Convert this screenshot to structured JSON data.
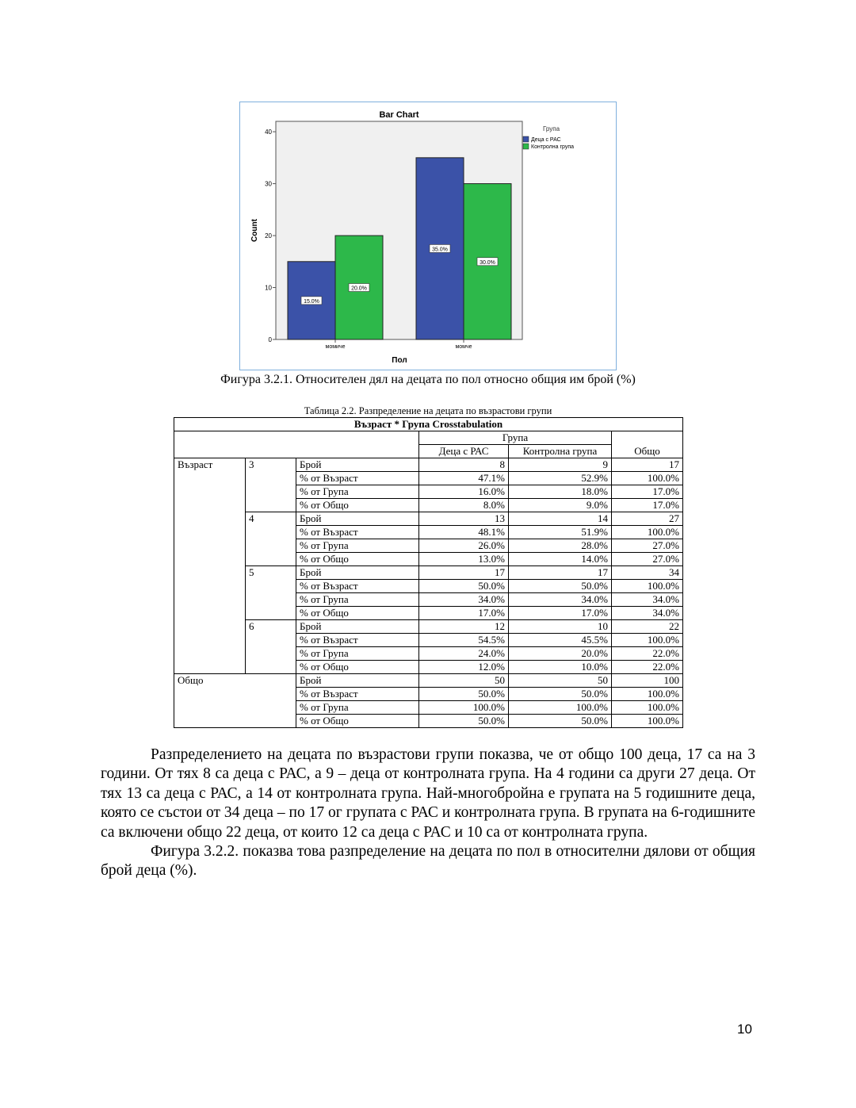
{
  "chart_data": {
    "type": "bar",
    "title": "Bar Chart",
    "xlabel": "Пол",
    "ylabel": "Count",
    "categories": [
      "момиче",
      "момче"
    ],
    "ylim": [
      0,
      42
    ],
    "yticks": [
      0,
      10,
      20,
      30,
      40
    ],
    "legend_title": "Група",
    "legend_position": "right",
    "series": [
      {
        "name": "Деца с РАС",
        "color": "#3b52a8",
        "values": [
          15,
          35
        ],
        "labels": [
          "15.0%",
          "35.0%"
        ]
      },
      {
        "name": "Контролна група",
        "color": "#2db84a",
        "values": [
          20,
          30
        ],
        "labels": [
          "20.0%",
          "30.0%"
        ]
      }
    ]
  },
  "figure_caption": "Фигура 3.2.1. Относителен дял на децата по пол относно общия им брой (%)",
  "table": {
    "caption": "Таблица 2.2. Разпределение на децата по възрастови групи",
    "title": "Възраст * Група Crosstabulation",
    "group_header": "Група",
    "col_headers": [
      "Деца с РАС",
      "Контролна група",
      "Общо"
    ],
    "row_var": "Възраст",
    "total_label": "Общо",
    "stats": [
      "Брой",
      "% от Възраст",
      "% от Група",
      "% от Общо"
    ],
    "groups": [
      {
        "age": "3",
        "rows": [
          [
            "8",
            "9",
            "17"
          ],
          [
            "47.1%",
            "52.9%",
            "100.0%"
          ],
          [
            "16.0%",
            "18.0%",
            "17.0%"
          ],
          [
            "8.0%",
            "9.0%",
            "17.0%"
          ]
        ]
      },
      {
        "age": "4",
        "rows": [
          [
            "13",
            "14",
            "27"
          ],
          [
            "48.1%",
            "51.9%",
            "100.0%"
          ],
          [
            "26.0%",
            "28.0%",
            "27.0%"
          ],
          [
            "13.0%",
            "14.0%",
            "27.0%"
          ]
        ]
      },
      {
        "age": "5",
        "rows": [
          [
            "17",
            "17",
            "34"
          ],
          [
            "50.0%",
            "50.0%",
            "100.0%"
          ],
          [
            "34.0%",
            "34.0%",
            "34.0%"
          ],
          [
            "17.0%",
            "17.0%",
            "34.0%"
          ]
        ]
      },
      {
        "age": "6",
        "rows": [
          [
            "12",
            "10",
            "22"
          ],
          [
            "54.5%",
            "45.5%",
            "100.0%"
          ],
          [
            "24.0%",
            "20.0%",
            "22.0%"
          ],
          [
            "12.0%",
            "10.0%",
            "22.0%"
          ]
        ]
      }
    ],
    "total_rows": [
      [
        "50",
        "50",
        "100"
      ],
      [
        "50.0%",
        "50.0%",
        "100.0%"
      ],
      [
        "100.0%",
        "100.0%",
        "100.0%"
      ],
      [
        "50.0%",
        "50.0%",
        "100.0%"
      ]
    ]
  },
  "paragraphs": [
    "Разпределението на децата по възрастови групи показва, че от общо 100 деца, 17 са на 3 години. От тях 8 са деца с РАС, а 9 – деца от контролната група. На 4 години са други 27 деца. От тях 13 са деца с РАС, а 14 от контролната група. Най-многобройна е групата на 5 годишните деца, която се състои от 34 деца – по 17 ог групата с РАС и контролната група. В групата на 6-годишните са включени общо 22 деца, от които 12 са деца с РАС  и 10 са от контролната група.",
    "Фигура 3.2.2. показва това разпределение на децата по пол в относителни дялови от общия брой деца (%)."
  ],
  "page_number": "10"
}
